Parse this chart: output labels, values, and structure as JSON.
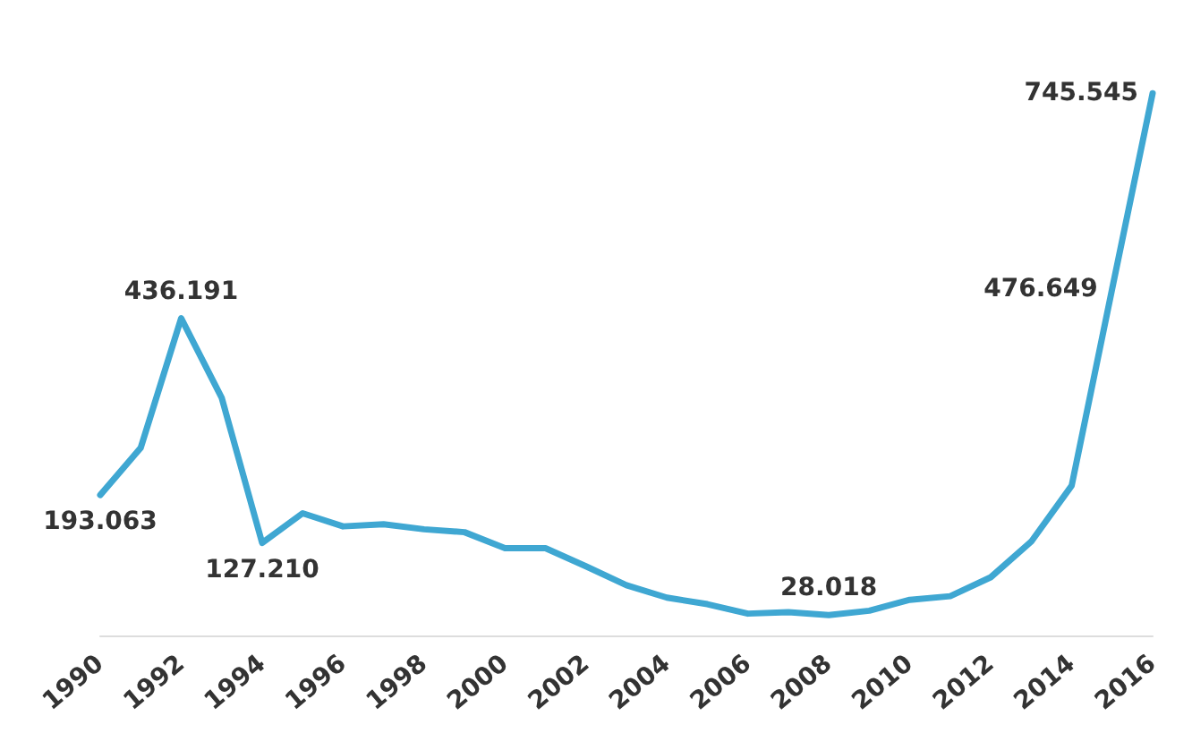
{
  "chart_data": {
    "type": "line",
    "categories": [
      "1990",
      null,
      "1992",
      null,
      "1994",
      null,
      "1996",
      null,
      "1998",
      null,
      "2000",
      null,
      "2002",
      null,
      "2004",
      null,
      "2006",
      null,
      "2008",
      null,
      "2010",
      null,
      "2012",
      null,
      "2014",
      null,
      "2016"
    ],
    "series": [
      {
        "color": "#3fa7d2",
        "values": [
          193.063,
          258,
          436.191,
          327,
          127.21,
          168,
          150,
          153,
          146,
          142,
          120,
          120,
          95,
          69,
          52,
          43,
          30,
          32,
          28.018,
          34,
          49,
          54,
          80,
          129,
          206,
          476.649,
          745.545
        ],
        "value_labels": [
          "193.063",
          null,
          "436.191",
          null,
          "127.210",
          null,
          null,
          null,
          null,
          null,
          null,
          null,
          null,
          null,
          null,
          null,
          null,
          null,
          "28.018",
          null,
          null,
          null,
          null,
          null,
          null,
          "476.649",
          "745.545"
        ]
      }
    ],
    "grid": false,
    "marker": "none",
    "line_style": "solid"
  }
}
